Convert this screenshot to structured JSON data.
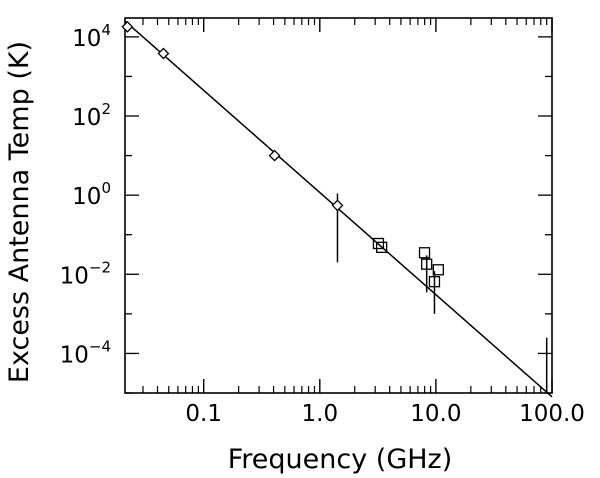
{
  "chart_data": {
    "type": "scatter",
    "x_label": "Frequency (GHz)",
    "y_label": "Excess Antenna Temp (K)",
    "x_scale": "log",
    "y_scale": "log",
    "xlim": [
      0.021,
      100.0
    ],
    "ylim": [
      1e-05,
      30000
    ],
    "grid": false,
    "x_ticks": [
      {
        "value": 0.1,
        "label": "0.1"
      },
      {
        "value": 1.0,
        "label": "1.0"
      },
      {
        "value": 10.0,
        "label": "10.0"
      },
      {
        "value": 100.0,
        "label": "100.0"
      }
    ],
    "y_ticks": [
      {
        "value": 0.0001,
        "base": "10",
        "exp": "−4"
      },
      {
        "value": 0.01,
        "base": "10",
        "exp": "−2"
      },
      {
        "value": 1,
        "base": "10",
        "exp": "0"
      },
      {
        "value": 100,
        "base": "10",
        "exp": "2"
      },
      {
        "value": 10000,
        "base": "10",
        "exp": "4"
      }
    ],
    "series": [
      {
        "marker": "diamond",
        "points": [
          {
            "x": 0.022,
            "y": 18000
          },
          {
            "x": 0.045,
            "y": 3800
          },
          {
            "x": 0.408,
            "y": 10
          },
          {
            "x": 1.42,
            "y": 0.55,
            "err_low": 0.02,
            "err_high": 1.1
          }
        ]
      },
      {
        "marker": "square",
        "points": [
          {
            "x": 3.2,
            "y": 0.06
          },
          {
            "x": 3.41,
            "y": 0.048
          },
          {
            "x": 7.98,
            "y": 0.035
          },
          {
            "x": 8.33,
            "y": 0.018,
            "err_low": 0.0035,
            "err_high": 0.03
          },
          {
            "x": 9.72,
            "y": 0.0065,
            "err_low": 0.001,
            "err_high": 0.012
          },
          {
            "x": 10.49,
            "y": 0.013
          }
        ]
      },
      {
        "marker": "none",
        "points": [
          {
            "x": 90.0,
            "y": 1e-05,
            "err_low": 1e-05,
            "err_high": 0.00025
          }
        ]
      }
    ],
    "fit_line": {
      "x": [
        0.021,
        100.0
      ],
      "y": [
        25000,
        8e-06
      ]
    }
  }
}
